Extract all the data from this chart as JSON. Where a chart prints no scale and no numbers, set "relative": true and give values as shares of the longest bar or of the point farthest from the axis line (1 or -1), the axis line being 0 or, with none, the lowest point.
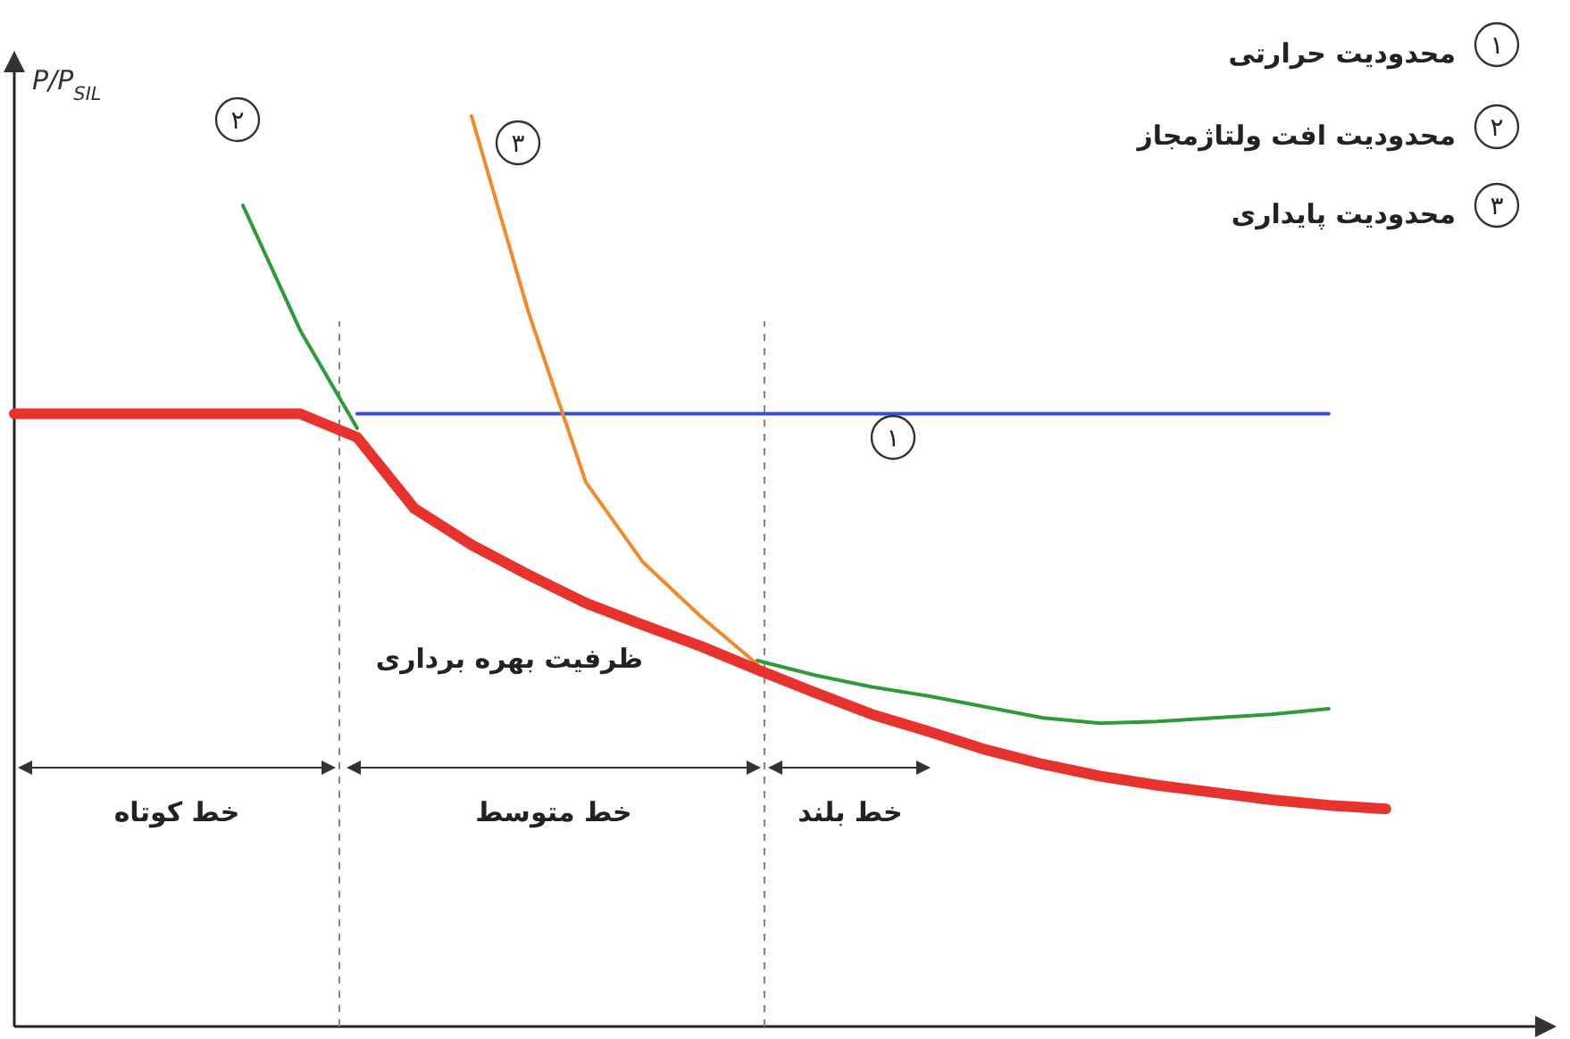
{
  "chart_data": {
    "type": "line",
    "relative": true,
    "ylabel": "P/P$_{SIL}$",
    "marker": "none",
    "line_style": "solid",
    "categories": [
      null,
      null,
      null,
      null,
      null,
      null,
      null,
      null,
      null,
      null,
      null,
      null,
      null,
      null,
      null,
      null,
      null,
      null,
      null,
      null,
      null,
      null,
      null,
      null,
      null
    ],
    "series": [
      {
        "color": "#3a4fd0",
        "values": [
          null,
          null,
          null,
          null,
          null,
          null,
          0.673,
          0.673,
          0.673,
          0.673,
          0.673,
          0.673,
          0.673,
          0.673,
          0.673,
          0.673,
          0.673,
          0.673,
          0.673,
          0.673,
          0.673,
          0.673,
          0.673,
          0.673,
          null
        ]
      },
      {
        "color": "#2e9a3a",
        "values": [
          null,
          null,
          null,
          null,
          0.902,
          0.765,
          0.657,
          null,
          null,
          null,
          null,
          null,
          null,
          0.402,
          0.386,
          0.373,
          0.363,
          0.351,
          0.339,
          0.333,
          0.335,
          0.339,
          0.343,
          0.349,
          null
        ]
      },
      {
        "color": "#f08a2c",
        "values": [
          null,
          null,
          null,
          null,
          null,
          null,
          null,
          null,
          1.0,
          0.784,
          0.598,
          0.51,
          0.451,
          0.398,
          null,
          null,
          null,
          null,
          null,
          null,
          null,
          null,
          null,
          null,
          null
        ]
      },
      {
        "name": "ظرفیت بهره برداری",
        "color": "#e8322d",
        "values": [
          0.673,
          0.673,
          0.673,
          0.673,
          0.673,
          0.673,
          0.647,
          0.569,
          0.529,
          0.496,
          0.465,
          0.441,
          0.418,
          0.392,
          0.367,
          0.343,
          0.324,
          0.304,
          0.288,
          0.275,
          0.265,
          0.257,
          0.249,
          0.243,
          0.239
        ]
      }
    ],
    "annotations": [
      "۱",
      "۲",
      "۳",
      "۱",
      "۲",
      "۳",
      "محدودیت حرارتی",
      "محدودیت افت ولتاژمجاز",
      "محدودیت پایداری",
      "خط کوتاه",
      "خط متوسط",
      "خط بلند"
    ]
  }
}
